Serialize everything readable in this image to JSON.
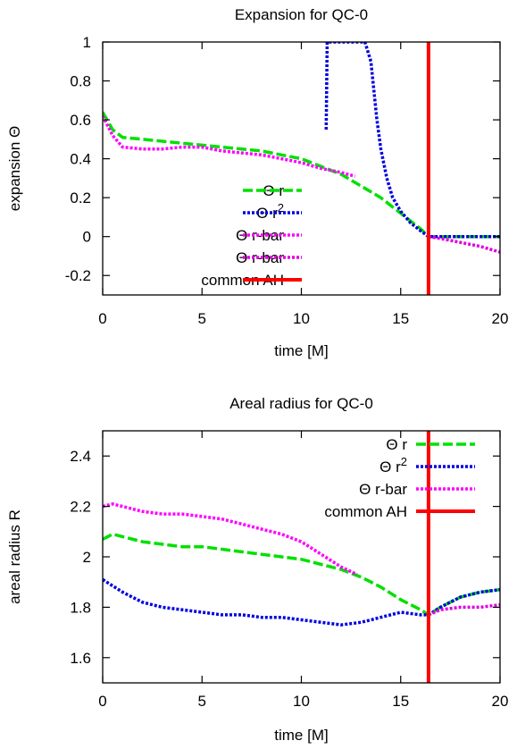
{
  "chart_data": [
    {
      "type": "line",
      "title": "Expansion for QC-0",
      "xlabel": "time [M]",
      "ylabel": "expansion Θ",
      "xlim": [
        0,
        20
      ],
      "ylim": [
        -0.3,
        1.0
      ],
      "xticks": [
        0,
        5,
        10,
        15,
        20
      ],
      "yticks": [
        -0.2,
        0,
        0.2,
        0.4,
        0.6,
        0.8,
        1
      ],
      "ytick_labels": [
        "-0.2",
        "0",
        "0.2",
        "0.4",
        "0.6",
        "0.8",
        "1"
      ],
      "grid": false,
      "legend_position": "bottom-left",
      "series": [
        {
          "name": "Θ r",
          "color": "#00e000",
          "style": "dashed",
          "x": [
            0,
            0.5,
            1,
            2,
            3,
            4,
            5,
            6,
            7,
            8,
            9,
            10,
            11,
            12,
            13,
            14,
            15,
            16,
            16.4,
            17,
            18,
            19,
            20
          ],
          "y": [
            0.64,
            0.55,
            0.51,
            0.5,
            0.49,
            0.48,
            0.47,
            0.46,
            0.45,
            0.44,
            0.42,
            0.4,
            0.36,
            0.32,
            0.26,
            0.2,
            0.12,
            0.04,
            0.0,
            0.0,
            0.0,
            0.0,
            0.0
          ]
        },
        {
          "name": "Θ r²",
          "color": "#0000e0",
          "style": "dotted",
          "x": [
            11.25,
            11.3,
            11.5,
            13.2,
            13.5,
            13.8,
            14.0,
            14.3,
            14.6,
            15.0,
            15.5,
            16.0,
            16.4,
            17,
            18,
            19,
            20
          ],
          "y": [
            0.55,
            1.0,
            1.0,
            1.0,
            0.9,
            0.6,
            0.45,
            0.3,
            0.2,
            0.13,
            0.07,
            0.03,
            0.0,
            0.0,
            0.0,
            0.0,
            0.0
          ]
        },
        {
          "name": "Θ r-bar",
          "color": "#ff00ff",
          "style": "dotted",
          "x": [
            0,
            0.5,
            1,
            2,
            3,
            4,
            5,
            6,
            7,
            8,
            9,
            10,
            11,
            12,
            12.7
          ],
          "y": [
            0.62,
            0.52,
            0.46,
            0.45,
            0.45,
            0.46,
            0.46,
            0.44,
            0.43,
            0.42,
            0.4,
            0.38,
            0.35,
            0.33,
            0.31
          ]
        },
        {
          "name": "Θ r-bar",
          "color": "#e000e0",
          "style": "dotted",
          "x": [
            16.4,
            17,
            18,
            19,
            20
          ],
          "y": [
            0.0,
            -0.01,
            -0.03,
            -0.05,
            -0.08
          ]
        },
        {
          "name": "common AH",
          "color": "#ff0000",
          "style": "solid",
          "x": [
            16.4,
            16.4
          ],
          "y": [
            -0.3,
            1.0
          ]
        }
      ]
    },
    {
      "type": "line",
      "title": "Areal radius for QC-0",
      "xlabel": "time [M]",
      "ylabel": "areal radius R",
      "xlim": [
        0,
        20
      ],
      "ylim": [
        1.5,
        2.5
      ],
      "xticks": [
        0,
        5,
        10,
        15,
        20
      ],
      "yticks": [
        1.6,
        1.8,
        2.0,
        2.2,
        2.4
      ],
      "ytick_labels": [
        "1.6",
        "1.8",
        "2",
        "2.2",
        "2.4"
      ],
      "grid": false,
      "legend_position": "top-right",
      "series": [
        {
          "name": "Θ r",
          "color": "#00e000",
          "style": "dashed",
          "x": [
            0,
            0.5,
            1,
            2,
            3,
            4,
            5,
            6,
            7,
            8,
            9,
            10,
            11,
            12,
            13,
            14,
            15,
            16,
            16.4,
            17,
            18,
            19,
            20
          ],
          "y": [
            2.07,
            2.09,
            2.08,
            2.06,
            2.05,
            2.04,
            2.04,
            2.03,
            2.02,
            2.01,
            2.0,
            1.99,
            1.97,
            1.95,
            1.92,
            1.88,
            1.83,
            1.79,
            1.77,
            1.8,
            1.84,
            1.86,
            1.87
          ]
        },
        {
          "name": "Θ r²",
          "color": "#0000e0",
          "style": "dotted",
          "x": [
            0,
            1,
            2,
            3,
            4,
            5,
            6,
            7,
            8,
            9,
            10,
            11,
            12,
            13,
            14,
            15,
            16,
            16.4,
            17,
            18,
            19,
            20
          ],
          "y": [
            1.91,
            1.86,
            1.82,
            1.8,
            1.79,
            1.78,
            1.77,
            1.77,
            1.76,
            1.76,
            1.75,
            1.74,
            1.73,
            1.74,
            1.76,
            1.78,
            1.77,
            1.77,
            1.8,
            1.84,
            1.86,
            1.87
          ]
        },
        {
          "name": "Θ r-bar",
          "color": "#ff00ff",
          "style": "dotted",
          "x": [
            0,
            0.5,
            1,
            2,
            3,
            4,
            5,
            6,
            7,
            8,
            9,
            10,
            11,
            12,
            12.8
          ],
          "y": [
            2.2,
            2.21,
            2.2,
            2.18,
            2.17,
            2.17,
            2.16,
            2.15,
            2.13,
            2.11,
            2.09,
            2.06,
            2.01,
            1.96,
            1.93
          ]
        },
        {
          "name": "",
          "color": "#e000e0",
          "style": "dotted",
          "x": [
            16.4,
            17,
            18,
            19,
            20
          ],
          "y": [
            1.77,
            1.79,
            1.8,
            1.8,
            1.81
          ]
        },
        {
          "name": "common AH",
          "color": "#ff0000",
          "style": "solid",
          "x": [
            16.4,
            16.4
          ],
          "y": [
            1.5,
            2.5
          ]
        }
      ]
    }
  ]
}
